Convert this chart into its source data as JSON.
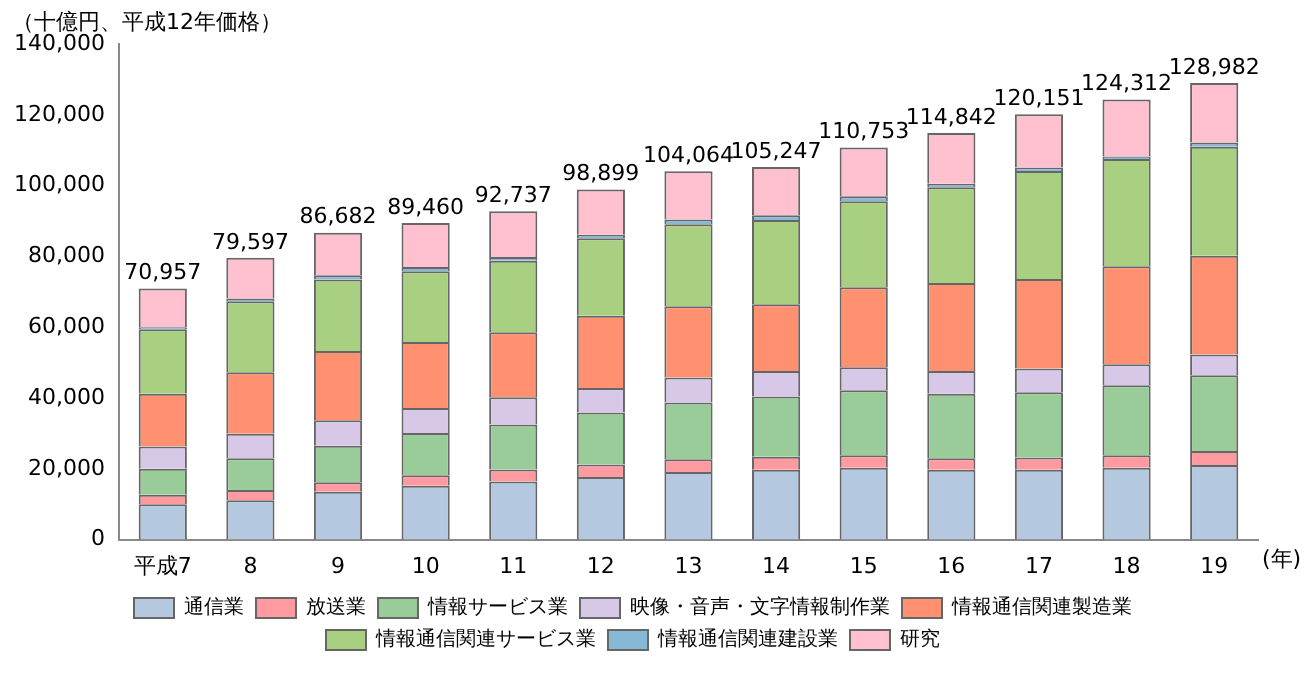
{
  "chart_data": {
    "type": "bar",
    "stacked": true,
    "ylabel": "（十億円、平成12年価格）",
    "annotations": [
      "(年)"
    ],
    "categories": [
      "平成7",
      "8",
      "9",
      "10",
      "11",
      "12",
      "13",
      "14",
      "15",
      "16",
      "17",
      "18",
      "19"
    ],
    "series": [
      {
        "name": "通信業",
        "color": "#b4c8e0",
        "values": [
          10000,
          11100,
          13500,
          15200,
          16400,
          17700,
          19100,
          19700,
          20300,
          19700,
          19700,
          20300,
          21100
        ]
      },
      {
        "name": "放送業",
        "color": "#ff9aa0",
        "values": [
          2700,
          2900,
          2700,
          3000,
          3400,
          3500,
          3600,
          3700,
          3500,
          3300,
          3500,
          3500,
          3900
        ]
      },
      {
        "name": "情報サービス業",
        "color": "#99cc99",
        "values": [
          7300,
          9000,
          10300,
          11900,
          12700,
          14700,
          16000,
          17000,
          18400,
          18200,
          18400,
          19800,
          21400
        ]
      },
      {
        "name": "映像・音声・文字情報制作業",
        "color": "#d8c8e8",
        "values": [
          6300,
          6900,
          7200,
          7100,
          7700,
          6900,
          7100,
          7200,
          6500,
          6400,
          6700,
          5900,
          5900
        ]
      },
      {
        "name": "情報通信関連製造業",
        "color": "#ff9070",
        "values": [
          14900,
          17400,
          19600,
          18600,
          18400,
          20400,
          20100,
          18900,
          22600,
          24900,
          25300,
          27700,
          27900
        ]
      },
      {
        "name": "情報通信関連サービス業",
        "color": "#a8d080",
        "values": [
          18200,
          20000,
          20200,
          20000,
          20200,
          21900,
          23200,
          23800,
          24300,
          27000,
          30500,
          30300,
          30800
        ]
      },
      {
        "name": "情報通信関連建設業",
        "color": "#88b8d8",
        "values": [
          600,
          800,
          1200,
          1200,
          1000,
          1000,
          1300,
          1300,
          1400,
          1000,
          1000,
          700,
          1200
        ]
      },
      {
        "name": "研究",
        "color": "#ffc0d0",
        "values": [
          10957,
          11497,
          11982,
          12460,
          12937,
          12799,
          13664,
          13647,
          13753,
          14342,
          15051,
          16112,
          16782
        ]
      }
    ],
    "totals": [
      "70,957",
      "79,597",
      "86,682",
      "89,460",
      "92,737",
      "98,899",
      "104,064",
      "105,247",
      "110,753",
      "114,842",
      "120,151",
      "124,312",
      "128,982"
    ],
    "ylim": [
      0,
      140000
    ],
    "yticks": [
      0,
      {
        "value": 20000,
        "label": "20,000"
      },
      {
        "value": 40000,
        "label": "40,000"
      },
      {
        "value": 60000,
        "label": "60,000"
      },
      {
        "value": 80000,
        "label": "80,000"
      },
      {
        "value": 100000,
        "label": "100,000"
      },
      {
        "value": 120000,
        "label": "120,000"
      },
      {
        "value": 140000,
        "label": "140,000"
      }
    ],
    "grid": false,
    "legend": "bottom"
  }
}
